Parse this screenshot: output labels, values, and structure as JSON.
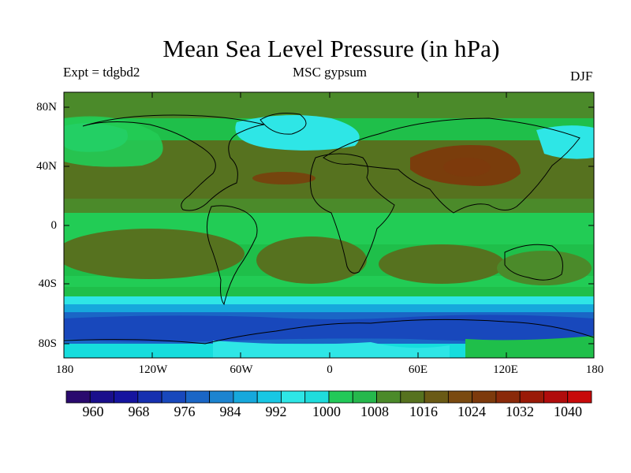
{
  "title": "Mean Sea Level Pressure (in hPa)",
  "experiment": "Expt = tdgbd2",
  "model": "MSC gypsum",
  "season": "DJF",
  "map": {
    "lat_labels": [
      "80N",
      "40N",
      "0",
      "40S",
      "80S"
    ],
    "lon_labels": [
      "180",
      "120W",
      "60W",
      "0",
      "60E",
      "120E",
      "180"
    ]
  },
  "colorbar": {
    "labels": [
      "960",
      "968",
      "976",
      "984",
      "992",
      "1000",
      "1008",
      "1016",
      "1024",
      "1032",
      "1040"
    ],
    "colors": [
      "#2a0a6e",
      "#1a0f8c",
      "#15149f",
      "#1630b0",
      "#1848bc",
      "#1a66c6",
      "#1c84d0",
      "#16a8dc",
      "#18c7e4",
      "#2ee6e6",
      "#1fdcdc",
      "#22c958",
      "#26b84c",
      "#4b8a2a",
      "#56721f",
      "#6a5a15",
      "#7a4a10",
      "#7d3a0c",
      "#8a2a0a",
      "#9a1a08",
      "#b00c0c",
      "#c80a0a"
    ]
  },
  "palette": {
    "deep_blue": "#1f3fb5",
    "blue": "#1a66c6",
    "cyan": "#16dddd",
    "light_green": "#22cc55",
    "green": "#1fbf4a",
    "olive": "#5a6a1c",
    "brown": "#7a3d0c"
  }
}
